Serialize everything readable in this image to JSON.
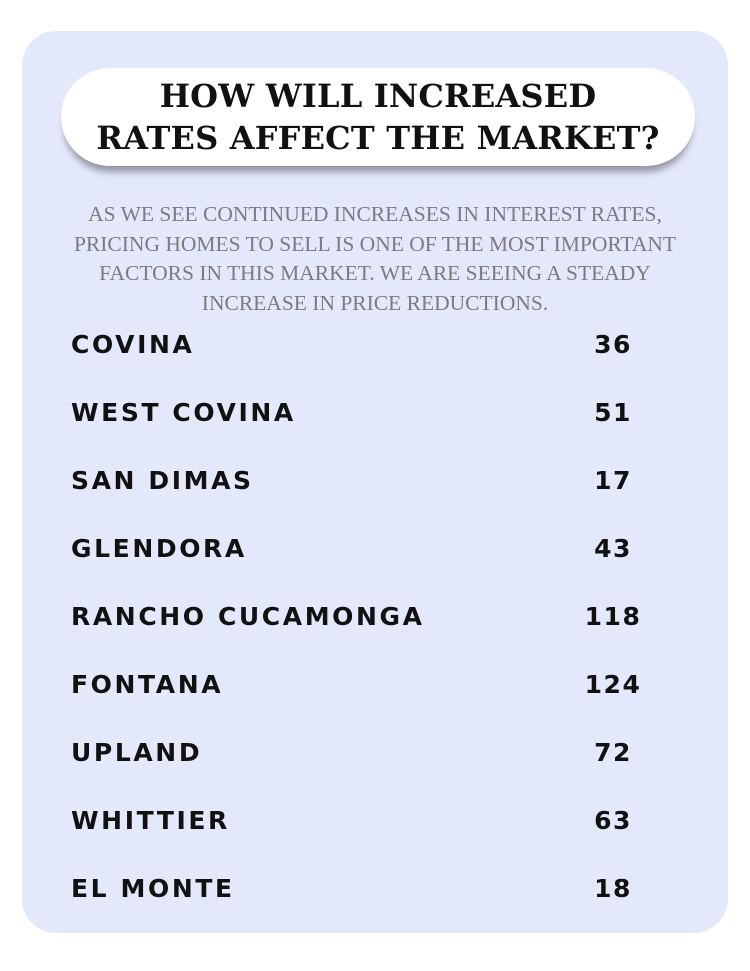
{
  "header": {
    "title_lines": [
      "HOW WILL INCREASED",
      "RATES AFFECT THE MARKET?"
    ]
  },
  "intro": {
    "lines": [
      "AS WE SEE CONTINUED INCREASES IN INTEREST RATES,",
      "PRICING  HOMES TO SELL IS ONE OF THE MOST IMPORTANT",
      "FACTORS IN THIS MARKET. WE ARE SEEING A STEADY",
      "INCREASE IN PRICE REDUCTIONS."
    ]
  },
  "table": {
    "rows": [
      {
        "city": "COVINA",
        "count": "36"
      },
      {
        "city": "WEST COVINA",
        "count": "51"
      },
      {
        "city": "SAN DIMAS",
        "count": "17"
      },
      {
        "city": "GLENDORA",
        "count": "43"
      },
      {
        "city": "RANCHO CUCAMONGA",
        "count": "118"
      },
      {
        "city": "FONTANA",
        "count": "124"
      },
      {
        "city": "UPLAND",
        "count": "72"
      },
      {
        "city": "WHITTIER",
        "count": "63"
      },
      {
        "city": "EL MONTE",
        "count": "18"
      }
    ]
  },
  "colors": {
    "card_background": "#e3e8fb",
    "title_pill": "#ffffff",
    "body_text": "#111111",
    "intro_text": "#7b7b80"
  }
}
